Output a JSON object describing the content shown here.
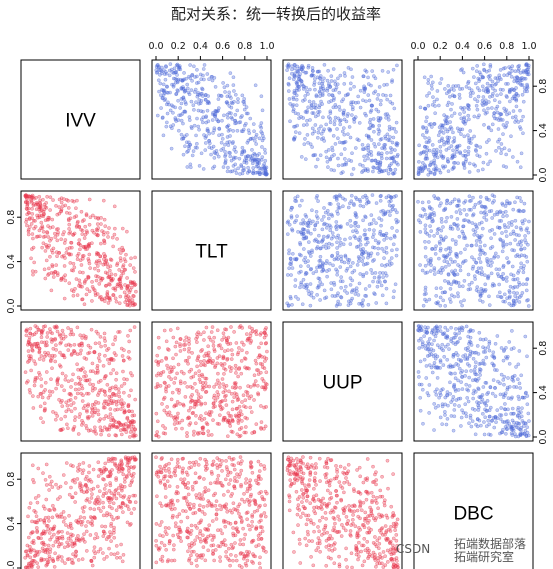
{
  "title": "配对关系：统一转换后的收益率",
  "watermark": {
    "prefix": "CSDN",
    "text": "拓端数据部落",
    "text2": "拓端研究室"
  },
  "chart_data": {
    "type": "scatter",
    "layout": "pairs-matrix",
    "variables": [
      "IVV",
      "TLT",
      "UUP",
      "DBC"
    ],
    "axis_range": [
      0,
      1
    ],
    "ticks": [
      0,
      0.2,
      0.4,
      0.6,
      0.8,
      1.0
    ],
    "tick_labels": [
      "0.0",
      "0.2",
      "0.4",
      "0.6",
      "0.8",
      "1.0"
    ],
    "points_per_panel": 500,
    "upper_color": "#4f6bd8",
    "lower_color": "#e8374c",
    "panel_dependence": [
      {
        "row": "IVV",
        "col": "TLT",
        "rho": -0.65
      },
      {
        "row": "IVV",
        "col": "UUP",
        "rho": -0.5
      },
      {
        "row": "IVV",
        "col": "DBC",
        "rho": 0.55
      },
      {
        "row": "TLT",
        "col": "UUP",
        "rho": 0.15
      },
      {
        "row": "TLT",
        "col": "DBC",
        "rho": -0.1
      },
      {
        "row": "UUP",
        "col": "DBC",
        "rho": -0.5
      }
    ]
  }
}
